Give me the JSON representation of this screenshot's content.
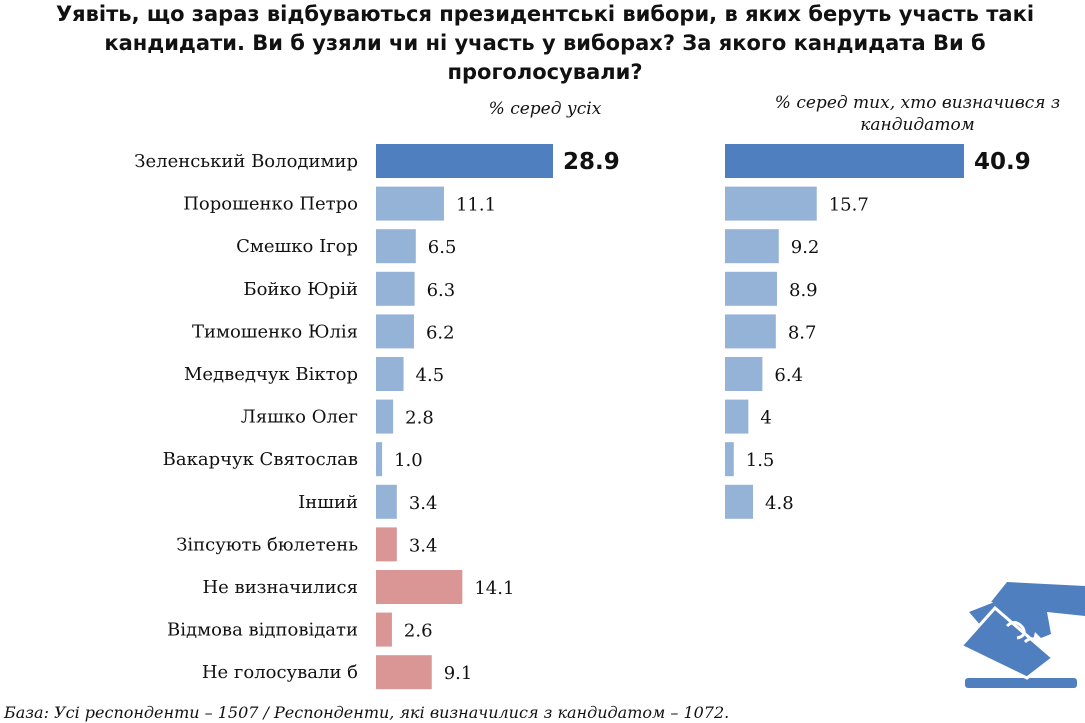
{
  "title": "Уявіть, що зараз відбуваються президентські вибори, в яких беруть участь такі кандидати. Ви б узяли чи ні участь у виборах? За якого кандидата Ви б проголосували?",
  "footnote": "База: Усі респонденти – 1507 / Респонденти, які визначилися з кандидатом – 1072.",
  "colors": {
    "highlight": "#4f7fbf",
    "candidate": "#95b3d7",
    "other": "#d99694",
    "icon": "#4f7fbf"
  },
  "icons": {
    "ballot": "hand-voting-ballot-icon"
  },
  "chart_data": [
    {
      "type": "bar",
      "orientation": "horizontal",
      "subtitle": "% серед усіх",
      "categories": [
        "Зеленський Володимир",
        "Порошенко Петро",
        "Смешко Ігор",
        "Бойко Юрій",
        "Тимошенко Юлія",
        "Медведчук Віктор",
        "Ляшко Олег",
        "Вакарчук Святослав",
        "Інший",
        "Зіпсують бюлетень",
        "Не визначилися",
        "Відмова відповідати",
        "Не голосували б"
      ],
      "values": [
        28.9,
        11.1,
        6.5,
        6.3,
        6.2,
        4.5,
        2.8,
        1.0,
        3.4,
        3.4,
        14.1,
        2.6,
        9.1
      ],
      "value_labels": [
        "28.9",
        "11.1",
        "6.5",
        "6.3",
        "6.2",
        "4.5",
        "2.8",
        "1.0",
        "3.4",
        "3.4",
        "14.1",
        "2.6",
        "9.1"
      ],
      "bar_colors": [
        "highlight",
        "candidate",
        "candidate",
        "candidate",
        "candidate",
        "candidate",
        "candidate",
        "candidate",
        "candidate",
        "other",
        "other",
        "other",
        "other"
      ],
      "xlim": [
        0,
        30
      ],
      "grid": false,
      "legend": "none"
    },
    {
      "type": "bar",
      "orientation": "horizontal",
      "subtitle": "% серед тих, хто визначився з кандидатом",
      "categories": [
        "Зеленський Володимир",
        "Порошенко Петро",
        "Смешко Ігор",
        "Бойко Юрій",
        "Тимошенко Юлія",
        "Медведчук Віктор",
        "Ляшко Олег",
        "Вакарчук Святослав",
        "Інший"
      ],
      "values": [
        40.9,
        15.7,
        9.2,
        8.9,
        8.7,
        6.4,
        4,
        1.5,
        4.8
      ],
      "value_labels": [
        "40.9",
        "15.7",
        "9.2",
        "8.9",
        "8.7",
        "6.4",
        "4",
        "1.5",
        "4.8"
      ],
      "bar_colors": [
        "highlight",
        "candidate",
        "candidate",
        "candidate",
        "candidate",
        "candidate",
        "candidate",
        "candidate",
        "candidate"
      ],
      "xlim": [
        0,
        43
      ],
      "grid": false,
      "legend": "none"
    }
  ]
}
